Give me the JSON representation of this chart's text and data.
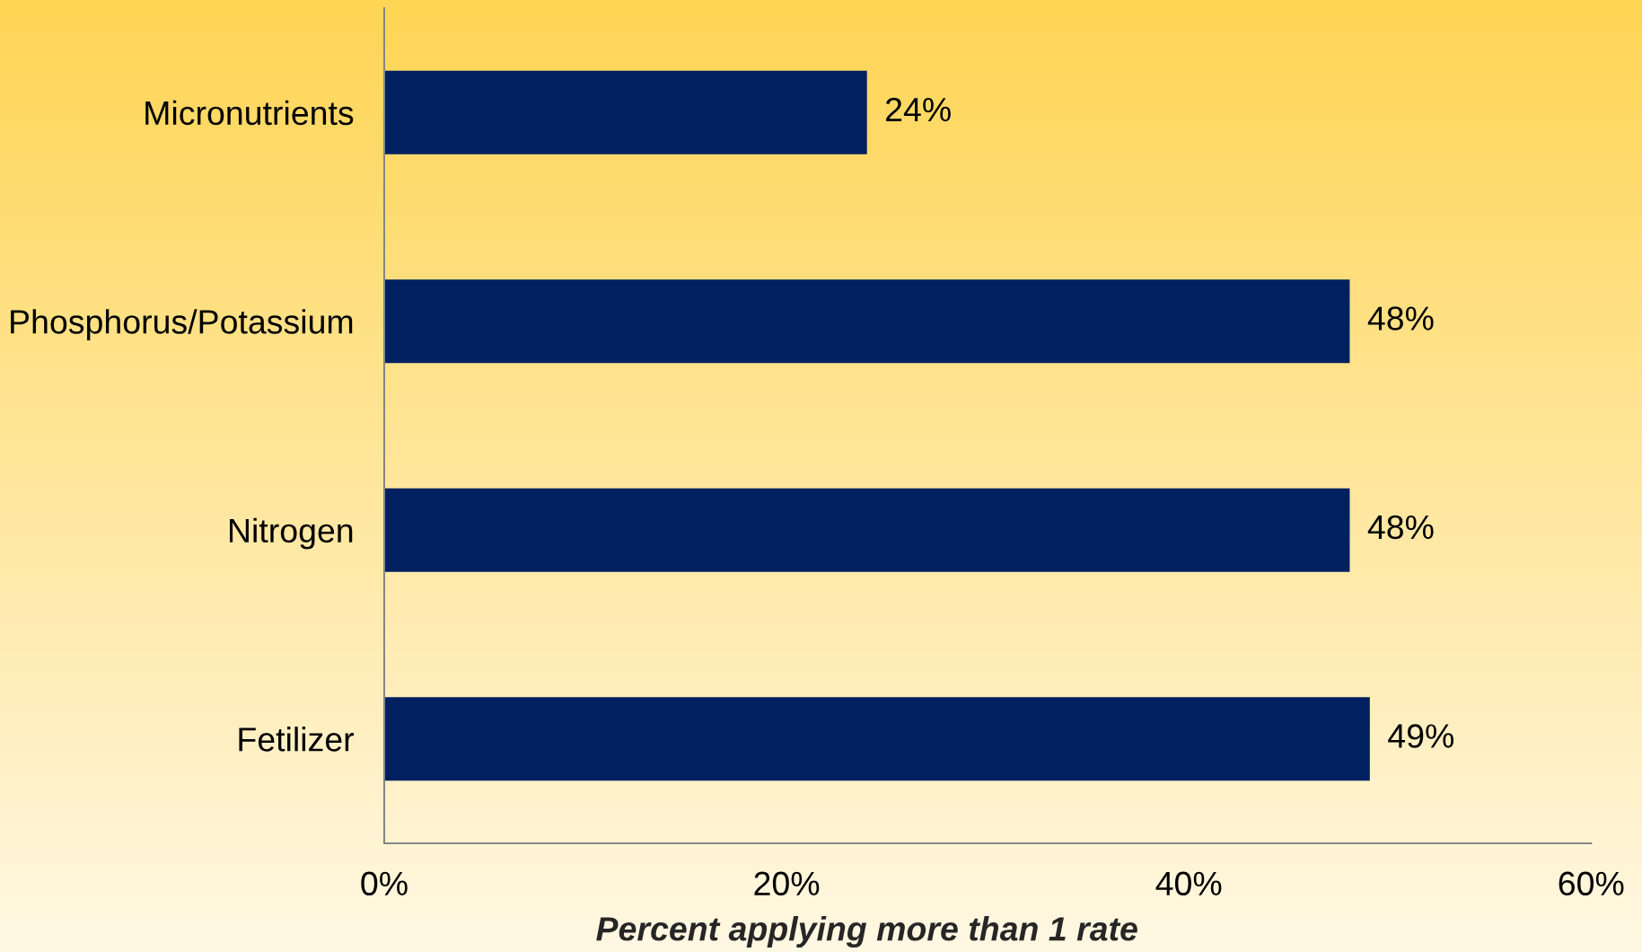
{
  "chart_data": {
    "type": "bar",
    "orientation": "horizontal",
    "categories": [
      "Micronutrients",
      "Phosphorus/Potassium",
      "Nitrogen",
      "Fetilizer"
    ],
    "values": [
      24,
      48,
      48,
      49
    ],
    "value_labels": [
      "24%",
      "48%",
      "48%",
      "49%"
    ],
    "color": "#002060",
    "xlabel": "Percent applying more than 1 rate",
    "xlim": [
      0,
      60
    ],
    "xticks": [
      {
        "value": 0,
        "label": "0%"
      },
      {
        "value": 20,
        "label": "20%"
      },
      {
        "value": 40,
        "label": "40%"
      },
      {
        "value": 60,
        "label": "60%"
      }
    ]
  }
}
